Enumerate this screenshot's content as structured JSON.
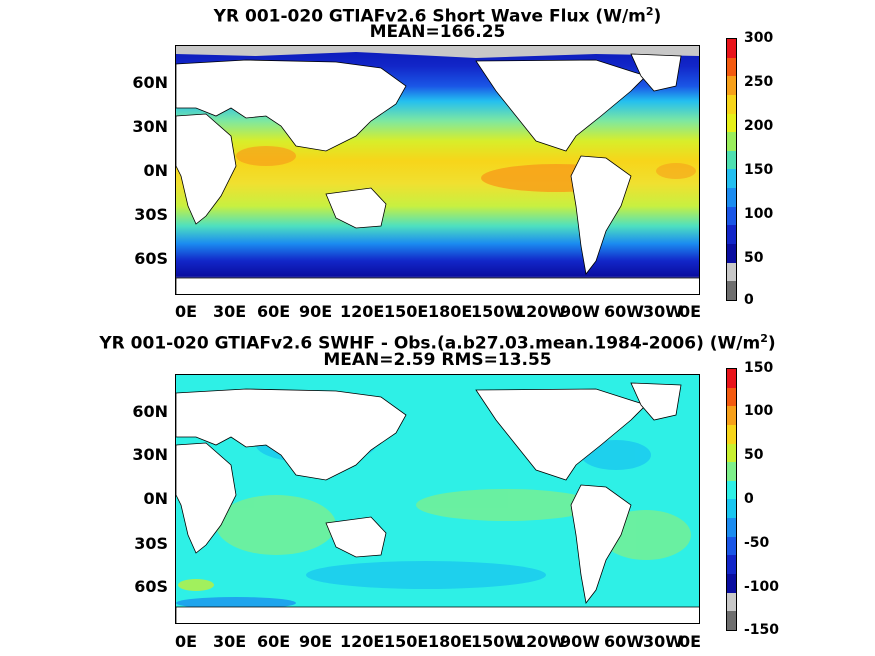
{
  "panels": [
    {
      "title_line1": "YR 001-020 GTIAFv2.6  Short Wave Flux (W/m",
      "title_sup": "2",
      "title_close": ")",
      "subtitle": "MEAN=166.25",
      "lat_labels": [
        "60N",
        "30N",
        "0N",
        "30S",
        "60S"
      ],
      "lon_labels": [
        "0E",
        "30E",
        "60E",
        "90E",
        "120E",
        "150E",
        "180E",
        "150W",
        "120W",
        "90W",
        "60W",
        "30W",
        "0E"
      ],
      "colorbar": {
        "ticks": [
          "300",
          "250",
          "200",
          "150",
          "100",
          "50",
          "0"
        ],
        "colors": [
          "#e8141b",
          "#f35a10",
          "#f7a01a",
          "#f7d51a",
          "#e6f01a",
          "#9aee5c",
          "#4ee0b0",
          "#23bff0",
          "#1b8cf0",
          "#1a56e6",
          "#1226c8",
          "#0a0ea0",
          "#c8c8c8",
          "#6e6e6e"
        ]
      }
    },
    {
      "title_line1": "YR 001-020 GTIAFv2.6 SWHF - Obs.(a.b27.03.mean.1984-2006) (W/m",
      "title_sup": "2",
      "title_close": ")",
      "subtitle": "MEAN=2.59 RMS=13.55",
      "lat_labels": [
        "60N",
        "30N",
        "0N",
        "30S",
        "60S"
      ],
      "lon_labels": [
        "0E",
        "30E",
        "60E",
        "90E",
        "120E",
        "150E",
        "180E",
        "150W",
        "120W",
        "90W",
        "60W",
        "30W",
        "0E"
      ],
      "colorbar": {
        "ticks": [
          "150",
          "100",
          "50",
          "0",
          "-50",
          "-100",
          "-150"
        ],
        "colors": [
          "#e8141b",
          "#f35a10",
          "#f7a01a",
          "#f7d51a",
          "#c8f030",
          "#7ef08a",
          "#2ef0e6",
          "#19c6f0",
          "#1b8cf0",
          "#1a56e6",
          "#1226c8",
          "#0a0ea0",
          "#c8c8c8",
          "#6e6e6e"
        ]
      }
    }
  ],
  "colors": {
    "land": "#ffffff",
    "coast": "#000000",
    "sea_ice": "#bdbdbd"
  }
}
